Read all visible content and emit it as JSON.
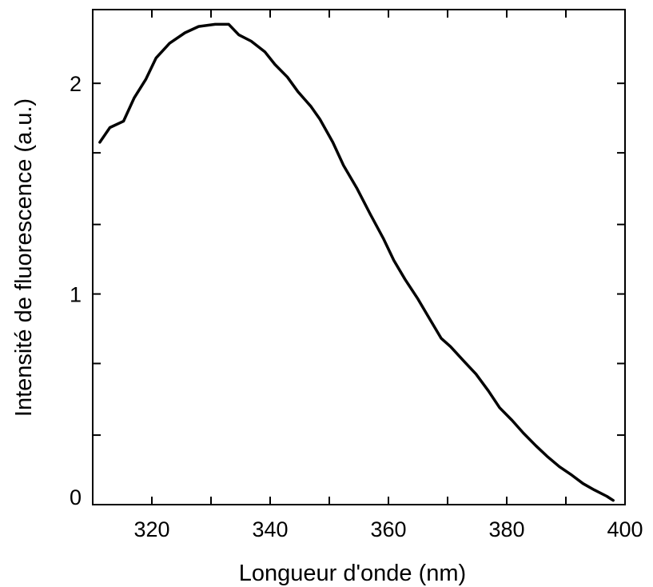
{
  "chart_data": {
    "type": "line",
    "xlabel": "Longueur d'onde (nm)",
    "ylabel": "Intensité de fluorescence (a.u.)",
    "xlim": [
      310,
      400
    ],
    "ylim": [
      0,
      2.35
    ],
    "x_ticks": [
      320,
      340,
      360,
      380,
      400
    ],
    "x_tick_labels": [
      "320",
      "340",
      "360",
      "380",
      "400"
    ],
    "x_minor_ticks": [
      330,
      350,
      370,
      390
    ],
    "y_ticks": [
      0,
      1,
      2
    ],
    "y_tick_labels": [
      "0",
      "1",
      "2"
    ],
    "y_minor_ticks": [
      0.33,
      0.67,
      1.33,
      1.67
    ],
    "grid": false,
    "line_color": "#000000",
    "series": [
      {
        "x": [
          311.2,
          312.9,
          315.2,
          317.0,
          319.0,
          320.7,
          323.0,
          325.6,
          327.9,
          330.7,
          333.0,
          334.7,
          336.8,
          339.1,
          340.8,
          342.9,
          344.7,
          346.9,
          348.4,
          350.6,
          352.4,
          354.7,
          356.9,
          359.2,
          360.9,
          362.8,
          364.9,
          366.8,
          368.9,
          370.5,
          372.8,
          374.8,
          376.9,
          378.8,
          380.9,
          382.8,
          384.9,
          386.8,
          388.9,
          391.0,
          392.9,
          394.8,
          396.9,
          398.0
        ],
        "y": [
          1.72,
          1.79,
          1.82,
          1.93,
          2.02,
          2.12,
          2.19,
          2.24,
          2.27,
          2.28,
          2.28,
          2.23,
          2.2,
          2.15,
          2.09,
          2.03,
          1.96,
          1.89,
          1.83,
          1.72,
          1.61,
          1.5,
          1.38,
          1.26,
          1.16,
          1.07,
          0.98,
          0.89,
          0.79,
          0.75,
          0.68,
          0.62,
          0.54,
          0.46,
          0.4,
          0.34,
          0.28,
          0.23,
          0.18,
          0.14,
          0.1,
          0.07,
          0.04,
          0.02
        ]
      }
    ]
  }
}
